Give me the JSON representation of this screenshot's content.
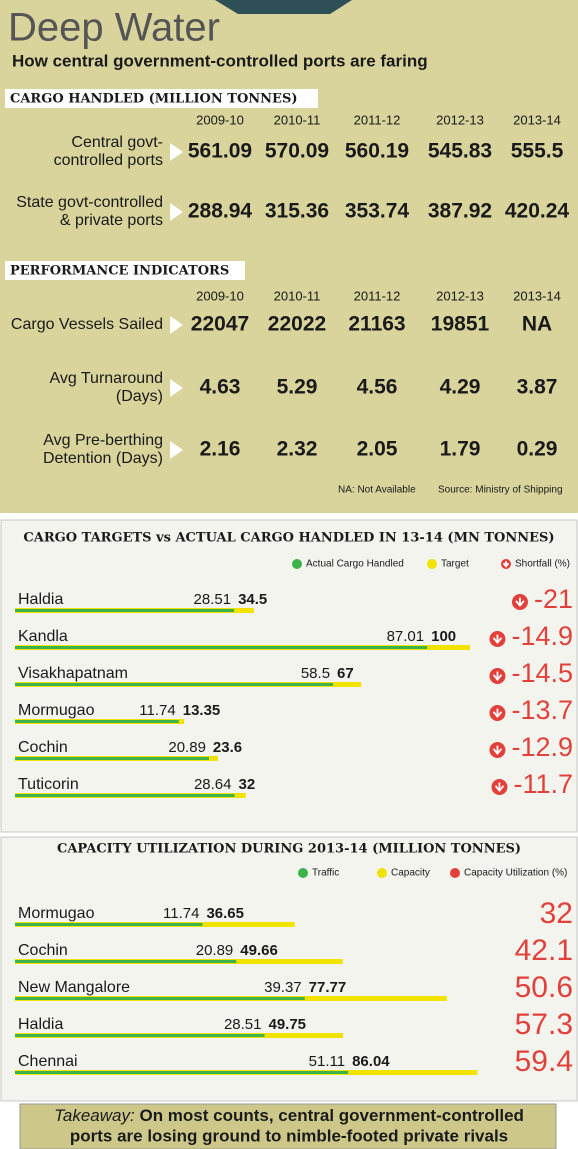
{
  "header": {
    "title": "Deep Water",
    "subtitle": "How central government-controlled ports are faring"
  },
  "cargo_handled": {
    "heading": "CARGO HANDLED (MILLION TONNES)",
    "years": [
      "2009-10",
      "2010-11",
      "2011-12",
      "2012-13",
      "2013-14"
    ],
    "rows": [
      {
        "label": [
          "Central govt-",
          "controlled ports"
        ],
        "values": [
          561.09,
          570.09,
          560.19,
          545.83,
          555.5
        ]
      },
      {
        "label": [
          "State govt-controlled",
          "& private ports"
        ],
        "values": [
          288.94,
          315.36,
          353.74,
          387.92,
          420.24
        ]
      }
    ]
  },
  "performance": {
    "heading": "PERFORMANCE INDICATORS",
    "years": [
      "2009-10",
      "2010-11",
      "2011-12",
      "2012-13",
      "2013-14"
    ],
    "rows": [
      {
        "label": [
          "Cargo Vessels Sailed"
        ],
        "values": [
          22047,
          22022,
          21163,
          19851,
          "NA"
        ]
      },
      {
        "label": [
          "Avg Turnaround",
          "(Days)"
        ],
        "values": [
          4.63,
          5.29,
          4.56,
          4.29,
          3.87
        ]
      },
      {
        "label": [
          "Avg Pre-berthing",
          "Detention (Days)"
        ],
        "values": [
          2.16,
          2.32,
          2.05,
          1.79,
          0.29
        ]
      }
    ],
    "notes": [
      "NA: Not Available",
      "Source: Ministry of Shipping"
    ]
  },
  "chart_data": [
    {
      "type": "bar",
      "title": "CARGO TARGETS vs ACTUAL CARGO HANDLED IN 13-14 (MN TONNES)",
      "categories": [
        "Haldia",
        "Kandla",
        "Visakhapatnam",
        "Mormugao",
        "Cochin",
        "Tuticorin"
      ],
      "series": [
        {
          "name": "Actual Cargo Handled",
          "color": "#3bb34a",
          "values": [
            28.51,
            87.01,
            58.5,
            11.74,
            20.89,
            28.64
          ]
        },
        {
          "name": "Target",
          "color": "#f2e200",
          "values": [
            34.5,
            100,
            67,
            13.35,
            23.6,
            32
          ]
        }
      ],
      "percent_column": {
        "name": "Shortfall (%)",
        "color": "#e2403a",
        "values": [
          -21,
          -14.9,
          -14.5,
          -13.7,
          -12.9,
          -11.7
        ]
      }
    },
    {
      "type": "bar",
      "title": "CAPACITY UTILIZATION DURING 2013-14 (MILLION TONNES)",
      "categories": [
        "Mormugao",
        "Cochin",
        "New Mangalore",
        "Haldia",
        "Chennai"
      ],
      "series": [
        {
          "name": "Traffic",
          "color": "#3bb34a",
          "values": [
            11.74,
            20.89,
            39.37,
            28.51,
            51.11
          ]
        },
        {
          "name": "Capacity",
          "color": "#f2e200",
          "values": [
            36.65,
            49.66,
            77.77,
            49.75,
            86.04
          ]
        }
      ],
      "percent_column": {
        "name": "Capacity Utilization (%)",
        "color": "#e2403a",
        "values": [
          32,
          42.1,
          50.6,
          57.3,
          59.4
        ]
      }
    }
  ],
  "footer": {
    "lead": "Takeaway:",
    "lines": [
      "On most counts, central government-controlled",
      "ports are losing ground to nimble-footed private rivals"
    ]
  }
}
